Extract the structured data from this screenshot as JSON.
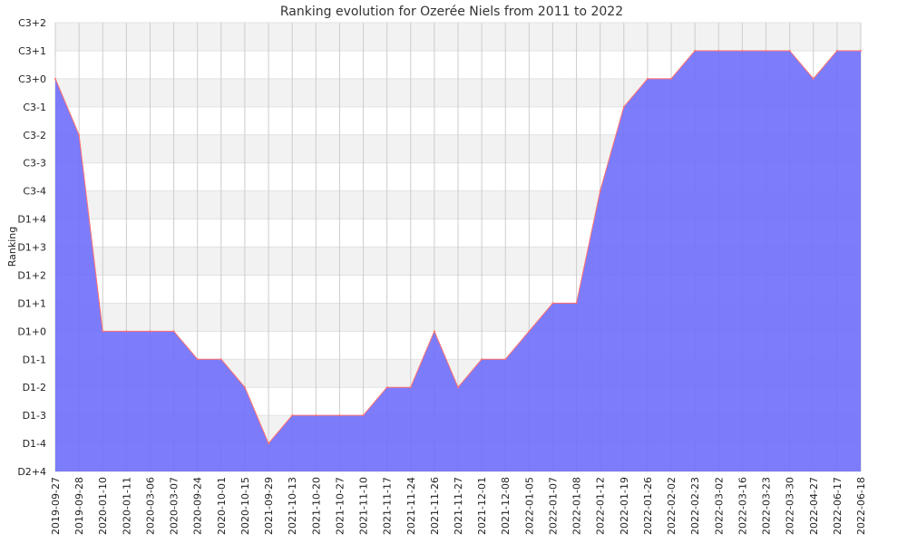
{
  "chart_data": {
    "type": "area",
    "title": "Ranking evolution for Ozerée Niels from 2011 to 2022",
    "xlabel": "",
    "ylabel": "Ranking",
    "x": [
      "2019-09-27",
      "2019-09-28",
      "2020-01-10",
      "2020-01-11",
      "2020-03-06",
      "2020-03-07",
      "2020-09-24",
      "2020-10-01",
      "2020-10-15",
      "2021-09-29",
      "2021-10-13",
      "2021-10-20",
      "2021-10-27",
      "2021-11-10",
      "2021-11-17",
      "2021-11-24",
      "2021-11-26",
      "2021-11-27",
      "2021-12-01",
      "2021-12-08",
      "2022-01-05",
      "2022-01-07",
      "2022-01-08",
      "2022-01-12",
      "2022-01-19",
      "2022-01-26",
      "2022-02-02",
      "2022-02-23",
      "2022-03-02",
      "2022-03-16",
      "2022-03-23",
      "2022-03-30",
      "2022-04-27",
      "2022-06-17",
      "2022-06-18"
    ],
    "y_categories": [
      "D2+4",
      "D1-4",
      "D1-3",
      "D1-2",
      "D1-1",
      "D1+0",
      "D1+1",
      "D1+2",
      "D1+3",
      "D1+4",
      "C3-4",
      "C3-3",
      "C3-2",
      "C3-1",
      "C3+0",
      "C3+1",
      "C3+2"
    ],
    "series": [
      {
        "values": [
          "C3+0",
          "C3-2",
          "D1+0",
          "D1+0",
          "D1+0",
          "D1+0",
          "D1-1",
          "D1-1",
          "D1-2",
          "D1-4",
          "D1-3",
          "D1-3",
          "D1-3",
          "D1-3",
          "D1-2",
          "D1-2",
          "D1+0",
          "D1-2",
          "D1-1",
          "D1-1",
          "D1+0",
          "D1+1",
          "D1+1",
          "C3-4",
          "C3-1",
          "C3+0",
          "C3+0",
          "C3+1",
          "C3+1",
          "C3+1",
          "C3+1",
          "C3+1",
          "C3+0",
          "C3+1",
          "C3+1"
        ]
      }
    ],
    "grid": true,
    "colors": {
      "fill": "#6f6ffc",
      "line": "#ff6f6f",
      "band": "#f2f2f2",
      "grid": "#cccccc"
    }
  }
}
